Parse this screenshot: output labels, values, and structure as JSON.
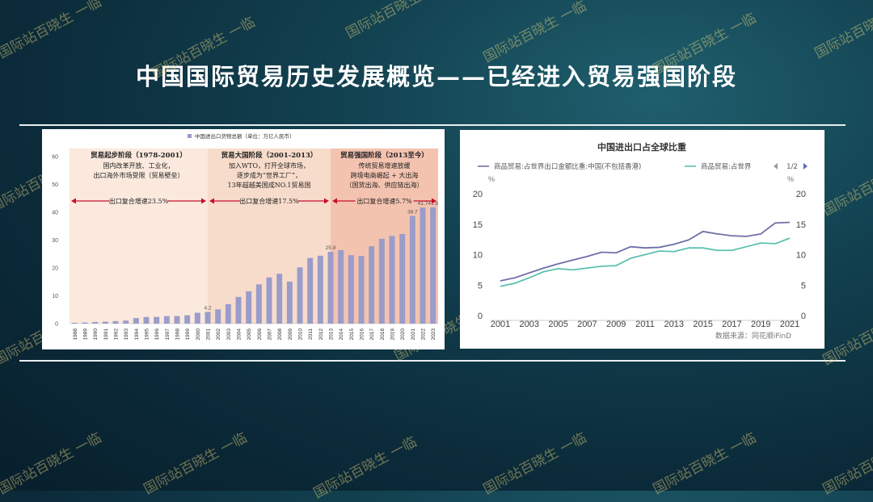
{
  "slide": {
    "title": "中国国际贸易历史发展概览——已经进入贸易强国阶段",
    "watermark": "国际站百晓生 一临"
  },
  "chart_data": [
    {
      "type": "bar",
      "legend": "中国进出口货物总额（单位：万亿人民币）",
      "categories": [
        "1988",
        "1989",
        "1990",
        "1991",
        "1992",
        "1993",
        "1994",
        "1995",
        "1996",
        "1997",
        "1998",
        "1999",
        "2000",
        "2001",
        "2002",
        "2003",
        "2004",
        "2005",
        "2006",
        "2007",
        "2008",
        "2009",
        "2010",
        "2011",
        "2012",
        "2013",
        "2014",
        "2015",
        "2016",
        "2017",
        "2018",
        "2019",
        "2020",
        "2021",
        "2022",
        "2023"
      ],
      "values": [
        0.3,
        0.4,
        0.6,
        0.7,
        0.9,
        1.1,
        2.0,
        2.4,
        2.4,
        2.7,
        2.7,
        3.0,
        3.9,
        4.2,
        5.1,
        7.0,
        9.6,
        11.6,
        14.1,
        16.6,
        17.9,
        15.1,
        20.2,
        23.6,
        24.4,
        25.8,
        26.4,
        24.6,
        24.3,
        27.8,
        30.5,
        31.5,
        32.2,
        38.7,
        41.7,
        41.8
      ],
      "data_labels": [
        {
          "index": 13,
          "text": "4.2"
        },
        {
          "index": 25,
          "text": "25.8"
        },
        {
          "index": 33,
          "text": "38.7"
        },
        {
          "index": 34,
          "text": "41.7"
        },
        {
          "index": 35,
          "text": "41.8"
        }
      ],
      "y_ticks": [
        "0",
        "10",
        "20",
        "30",
        "40",
        "50",
        "60"
      ],
      "ylim": [
        0,
        60
      ],
      "phases": [
        {
          "title": "贸易起步阶段（1978-2001）",
          "lines": [
            "国内改革开放、工业化，",
            "出口海外市场受限（贸易壁垒）"
          ],
          "cagr": "出口复合增速23.5%",
          "start": "1988",
          "end": "2001",
          "color": "#fbe9dd"
        },
        {
          "title": "贸易大国阶段（2001-2013）",
          "lines": [
            "加入WTO，打开全球市场，",
            "逐步成为“世界工厂”，",
            "13年超越美国成NO.1贸易国"
          ],
          "cagr": "出口复合增速17.5%",
          "start": "2001",
          "end": "2013",
          "color": "#f8dccb"
        },
        {
          "title": "贸易强国阶段（2013至今）",
          "lines": [
            "传统贸易增速放缓",
            "跨境电商崛起 + 大出海",
            "（国货出海、供应链出海）"
          ],
          "cagr": "出口复合增速5.7%",
          "start": "2013",
          "end": "2023",
          "color": "#f4c3b0"
        }
      ],
      "colors": {
        "bar": "#9a9cc9",
        "arrow": "#c8102e"
      }
    },
    {
      "type": "line",
      "title": "中国进出口占全球比重",
      "legend": [
        "商品贸易:占世界出口金额比重:中国(不包括香港)",
        "商品贸易:占世界"
      ],
      "legend_page": "1/2",
      "y_unit": "%",
      "x_ticks": [
        "2001",
        "2003",
        "2005",
        "2007",
        "2009",
        "2011",
        "2013",
        "2015",
        "2017",
        "2019",
        "2021"
      ],
      "y_ticks": [
        "0",
        "5",
        "10",
        "15",
        "20"
      ],
      "xlim": [
        2001,
        2021
      ],
      "ylim": [
        0,
        20
      ],
      "source": "数据来源：同花顺iFinD",
      "series": [
        {
          "name": "商品贸易:占世界出口金额比重:中国(不包括香港)",
          "color": "#6f6fa8",
          "x": [
            2001,
            2002,
            2003,
            2004,
            2005,
            2006,
            2007,
            2008,
            2009,
            2010,
            2011,
            2012,
            2013,
            2014,
            2015,
            2016,
            2017,
            2018,
            2019,
            2020,
            2021
          ],
          "values": [
            5.7,
            6.2,
            7.0,
            7.8,
            8.5,
            9.1,
            9.7,
            10.4,
            10.3,
            11.3,
            11.1,
            11.2,
            11.7,
            12.4,
            13.8,
            13.4,
            13.1,
            13.0,
            13.4,
            15.2,
            15.3
          ]
        },
        {
          "name": "商品贸易:占世界",
          "color": "#5cc1b0",
          "x": [
            2001,
            2002,
            2003,
            2004,
            2005,
            2006,
            2007,
            2008,
            2009,
            2010,
            2011,
            2012,
            2013,
            2014,
            2015,
            2016,
            2017,
            2018,
            2019,
            2020,
            2021
          ],
          "values": [
            4.8,
            5.3,
            6.2,
            7.2,
            7.7,
            7.5,
            7.8,
            8.1,
            8.2,
            9.4,
            10.0,
            10.6,
            10.5,
            11.1,
            11.1,
            10.7,
            10.7,
            11.3,
            11.9,
            11.8,
            12.7
          ]
        }
      ]
    }
  ]
}
